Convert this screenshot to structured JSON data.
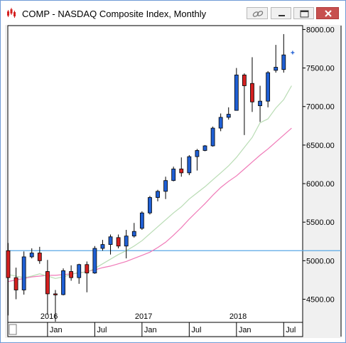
{
  "window": {
    "title": "COMP - NASDAQ Composite Index, Monthly"
  },
  "icons": {
    "app": "chart-app-icon",
    "link": "link-icon",
    "minimize": "minimize-icon",
    "restore": "restore-icon",
    "close": "close-icon"
  },
  "colors": {
    "up_candle": "#1f5fd4",
    "down_candle": "#d42020",
    "ma_short": "#b9dcb4",
    "ma_long": "#f07ab8",
    "horizontal_line": "#5aa8e6",
    "last_price_marker": "#1f5fd4"
  },
  "chart_data": {
    "type": "candlestick",
    "title": "",
    "x_range": [
      "2015-08",
      "2018-08"
    ],
    "ylim": [
      4200,
      8050
    ],
    "y_ticks": [
      "8000.00",
      "7500.00",
      "7000.00",
      "6500.00",
      "6000.00",
      "5500.00",
      "5000.00",
      "4500.00"
    ],
    "x_year_labels": [
      "2016",
      "2017",
      "2018"
    ],
    "x_month_labels": [
      "Jan",
      "Jul",
      "Jan",
      "Jul",
      "Jan",
      "Jul"
    ],
    "horizontal_line_value": 5130,
    "last_price": 7700,
    "candles": [
      {
        "date": "2015-08",
        "open": 5130,
        "high": 5230,
        "low": 4290,
        "close": 4780
      },
      {
        "date": "2015-09",
        "open": 4780,
        "high": 4910,
        "low": 4500,
        "close": 4620
      },
      {
        "date": "2015-10",
        "open": 4620,
        "high": 5120,
        "low": 4560,
        "close": 5050
      },
      {
        "date": "2015-11",
        "open": 5050,
        "high": 5160,
        "low": 5030,
        "close": 5100
      },
      {
        "date": "2015-12",
        "open": 5100,
        "high": 5180,
        "low": 4960,
        "close": 5000
      },
      {
        "date": "2016-01",
        "open": 4860,
        "high": 5010,
        "low": 4300,
        "close": 4570
      },
      {
        "date": "2016-02",
        "open": 4570,
        "high": 4620,
        "low": 4210,
        "close": 4560
      },
      {
        "date": "2016-03",
        "open": 4560,
        "high": 4900,
        "low": 4550,
        "close": 4870
      },
      {
        "date": "2016-04",
        "open": 4860,
        "high": 4940,
        "low": 4740,
        "close": 4780
      },
      {
        "date": "2016-05",
        "open": 4780,
        "high": 4960,
        "low": 4700,
        "close": 4950
      },
      {
        "date": "2016-06",
        "open": 4950,
        "high": 4990,
        "low": 4590,
        "close": 4840
      },
      {
        "date": "2016-07",
        "open": 4840,
        "high": 5190,
        "low": 4830,
        "close": 5160
      },
      {
        "date": "2016-08",
        "open": 5160,
        "high": 5270,
        "low": 5130,
        "close": 5210
      },
      {
        "date": "2016-09",
        "open": 5210,
        "high": 5340,
        "low": 5080,
        "close": 5310
      },
      {
        "date": "2016-10",
        "open": 5300,
        "high": 5340,
        "low": 5160,
        "close": 5190
      },
      {
        "date": "2016-11",
        "open": 5190,
        "high": 5400,
        "low": 5030,
        "close": 5320
      },
      {
        "date": "2016-12",
        "open": 5320,
        "high": 5490,
        "low": 5300,
        "close": 5380
      },
      {
        "date": "2017-01",
        "open": 5420,
        "high": 5640,
        "low": 5400,
        "close": 5620
      },
      {
        "date": "2017-02",
        "open": 5620,
        "high": 5840,
        "low": 5600,
        "close": 5820
      },
      {
        "date": "2017-03",
        "open": 5820,
        "high": 5920,
        "low": 5770,
        "close": 5900
      },
      {
        "date": "2017-04",
        "open": 5900,
        "high": 6090,
        "low": 5800,
        "close": 6040
      },
      {
        "date": "2017-05",
        "open": 6040,
        "high": 6220,
        "low": 6030,
        "close": 6190
      },
      {
        "date": "2017-06",
        "open": 6190,
        "high": 6340,
        "low": 6090,
        "close": 6140
      },
      {
        "date": "2017-07",
        "open": 6140,
        "high": 6370,
        "low": 6110,
        "close": 6350
      },
      {
        "date": "2017-08",
        "open": 6350,
        "high": 6450,
        "low": 6170,
        "close": 6430
      },
      {
        "date": "2017-09",
        "open": 6430,
        "high": 6500,
        "low": 6420,
        "close": 6490
      },
      {
        "date": "2017-10",
        "open": 6490,
        "high": 6740,
        "low": 6480,
        "close": 6720
      },
      {
        "date": "2017-11",
        "open": 6720,
        "high": 6910,
        "low": 6680,
        "close": 6860
      },
      {
        "date": "2017-12",
        "open": 6860,
        "high": 6990,
        "low": 6830,
        "close": 6900
      },
      {
        "date": "2018-01",
        "open": 6950,
        "high": 7500,
        "low": 6950,
        "close": 7410
      },
      {
        "date": "2018-02",
        "open": 7410,
        "high": 7430,
        "low": 6630,
        "close": 7270
      },
      {
        "date": "2018-03",
        "open": 7300,
        "high": 7640,
        "low": 6930,
        "close": 7060
      },
      {
        "date": "2018-04",
        "open": 7010,
        "high": 7270,
        "low": 6800,
        "close": 7070
      },
      {
        "date": "2018-05",
        "open": 7070,
        "high": 7460,
        "low": 6990,
        "close": 7440
      },
      {
        "date": "2018-06",
        "open": 7470,
        "high": 7800,
        "low": 7440,
        "close": 7510
      },
      {
        "date": "2018-07",
        "open": 7480,
        "high": 7940,
        "low": 7440,
        "close": 7670
      }
    ],
    "ma_short": {
      "name": "",
      "values": [
        4820,
        4800,
        4780,
        4800,
        4830,
        4800,
        4770,
        4790,
        4820,
        4850,
        4850,
        4900,
        4960,
        5020,
        5080,
        5130,
        5190,
        5260,
        5350,
        5440,
        5530,
        5620,
        5700,
        5800,
        5880,
        5960,
        6050,
        6140,
        6230,
        6340,
        6470,
        6600,
        6790,
        6840,
        6980,
        7090,
        7270
      ]
    },
    "ma_long": {
      "name": "",
      "values": [
        4730,
        4750,
        4770,
        4790,
        4800,
        4810,
        4810,
        4820,
        4830,
        4840,
        4860,
        4880,
        4910,
        4930,
        4960,
        4990,
        5030,
        5070,
        5110,
        5170,
        5240,
        5330,
        5430,
        5540,
        5640,
        5740,
        5850,
        5950,
        6030,
        6100,
        6190,
        6280,
        6370,
        6450,
        6540,
        6630,
        6720
      ]
    }
  }
}
